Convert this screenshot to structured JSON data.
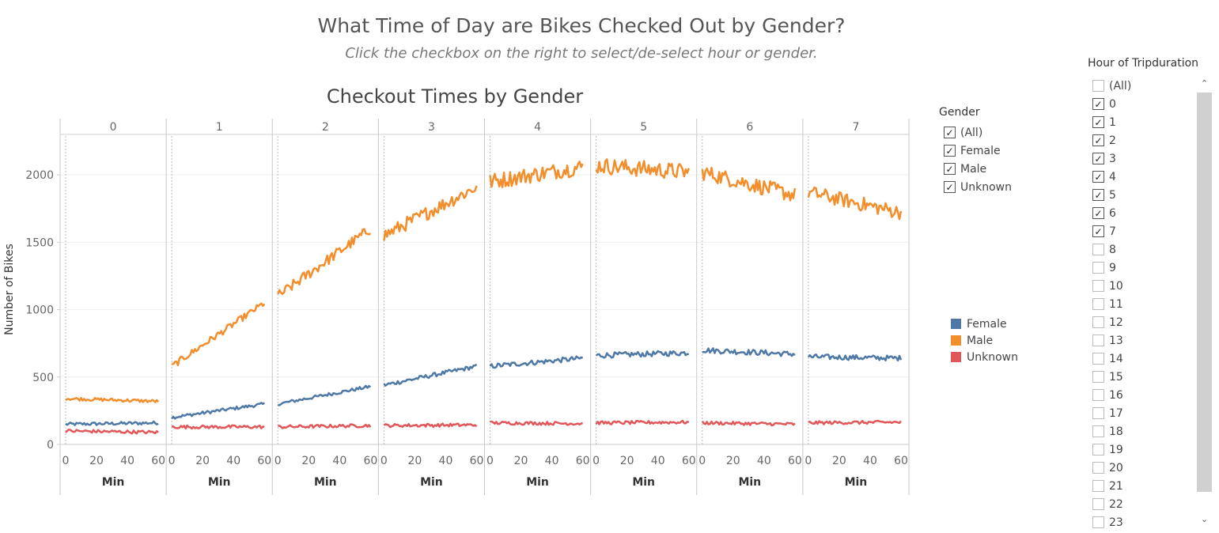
{
  "page": {
    "title": "What Time of Day are Bikes Checked Out by Gender?",
    "subtitle": "Click the checkbox on the right to select/de-select hour or gender."
  },
  "gender_filter": {
    "title": "Gender",
    "items": [
      {
        "label": "(All)",
        "checked": true
      },
      {
        "label": "Female",
        "checked": true
      },
      {
        "label": "Male",
        "checked": true
      },
      {
        "label": "Unknown",
        "checked": true
      }
    ]
  },
  "legend": {
    "items": [
      {
        "label": "Female",
        "color": "#4e79a7"
      },
      {
        "label": "Male",
        "color": "#f28e2b"
      },
      {
        "label": "Unknown",
        "color": "#e15759"
      }
    ]
  },
  "hour_filter": {
    "title": "Hour of Tripduration",
    "items": [
      {
        "label": "(All)",
        "checked": false
      },
      {
        "label": "0",
        "checked": true
      },
      {
        "label": "1",
        "checked": true
      },
      {
        "label": "2",
        "checked": true
      },
      {
        "label": "3",
        "checked": true
      },
      {
        "label": "4",
        "checked": true
      },
      {
        "label": "5",
        "checked": true
      },
      {
        "label": "6",
        "checked": true
      },
      {
        "label": "7",
        "checked": true
      },
      {
        "label": "8",
        "checked": false
      },
      {
        "label": "9",
        "checked": false
      },
      {
        "label": "10",
        "checked": false
      },
      {
        "label": "11",
        "checked": false
      },
      {
        "label": "12",
        "checked": false
      },
      {
        "label": "13",
        "checked": false
      },
      {
        "label": "14",
        "checked": false
      },
      {
        "label": "15",
        "checked": false
      },
      {
        "label": "16",
        "checked": false
      },
      {
        "label": "17",
        "checked": false
      },
      {
        "label": "18",
        "checked": false
      },
      {
        "label": "19",
        "checked": false
      },
      {
        "label": "20",
        "checked": false
      },
      {
        "label": "21",
        "checked": false
      },
      {
        "label": "22",
        "checked": false
      },
      {
        "label": "23",
        "checked": false
      }
    ]
  },
  "icons": {
    "checkbox_checked": "checkmark-icon",
    "scroll_up": "chevron-up-icon",
    "scroll_down": "chevron-down-icon"
  },
  "chart_data": {
    "type": "line",
    "title": "Checkout Times by Gender",
    "ylabel": "Number of Bikes",
    "xlabel": "Min",
    "ylim": [
      0,
      2300
    ],
    "yticks": [
      0,
      500,
      1000,
      1500,
      2000
    ],
    "xticks": [
      0,
      20,
      40,
      60
    ],
    "xlim": [
      0,
      60
    ],
    "grid": true,
    "panels": [
      "0",
      "1",
      "2",
      "3",
      "4",
      "5",
      "6",
      "7"
    ],
    "series": [
      {
        "name": "Female",
        "color": "#4e79a7",
        "start": [
          150,
          200,
          300,
          440,
          580,
          660,
          700,
          650
        ],
        "end": [
          160,
          300,
          430,
          580,
          640,
          680,
          670,
          640
        ]
      },
      {
        "name": "Male",
        "color": "#f28e2b",
        "start": [
          340,
          580,
          1100,
          1550,
          1950,
          2070,
          2020,
          1870
        ],
        "end": [
          320,
          1050,
          1600,
          1910,
          2060,
          2020,
          1850,
          1720
        ]
      },
      {
        "name": "Unknown",
        "color": "#e15759",
        "start": [
          100,
          130,
          130,
          140,
          160,
          160,
          160,
          160
        ],
        "end": [
          90,
          130,
          140,
          145,
          155,
          165,
          150,
          165
        ]
      }
    ]
  }
}
